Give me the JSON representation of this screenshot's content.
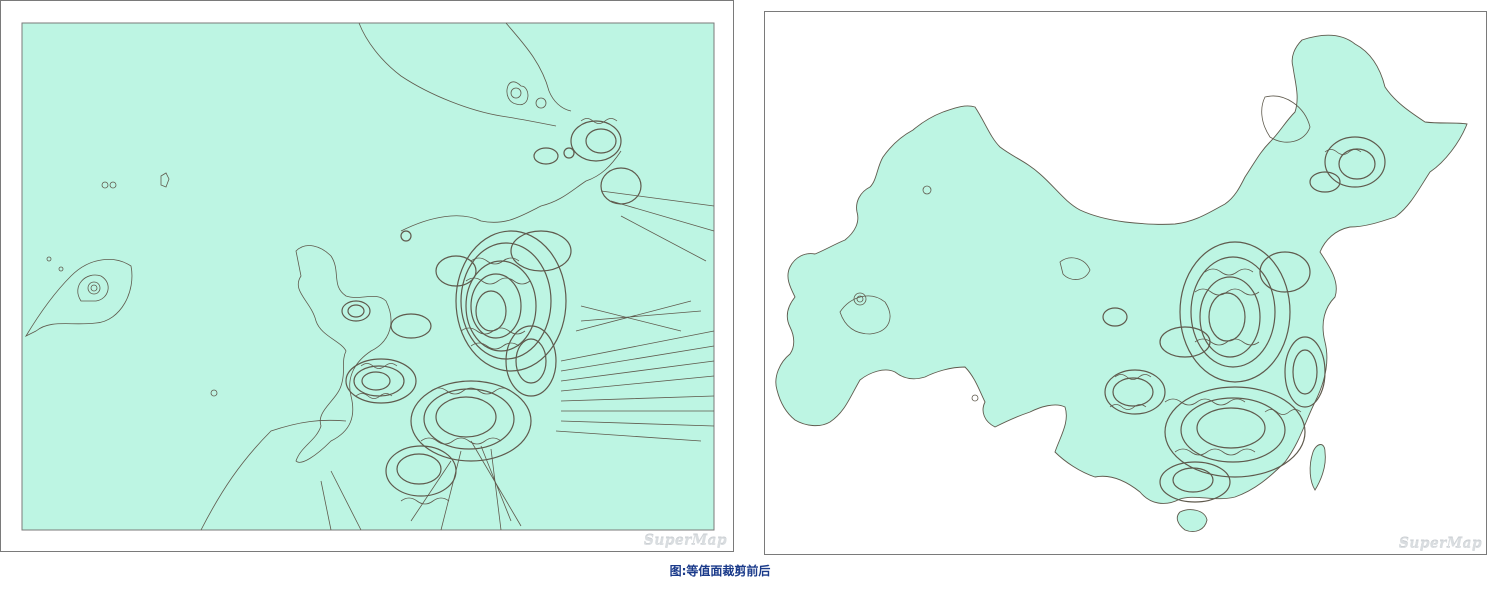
{
  "figure": {
    "caption": "图:等值面裁剪前后"
  },
  "panels": [
    {
      "id": "before-clip",
      "watermark": "SuperMap"
    },
    {
      "id": "after-clip",
      "watermark": "SuperMap"
    }
  ],
  "colors": {
    "fill": "#bdf5e3",
    "contour": "#5f5a4d",
    "frame": "#7a7a7a",
    "caption": "#1a3a8a",
    "watermark": "#d9dde0"
  }
}
